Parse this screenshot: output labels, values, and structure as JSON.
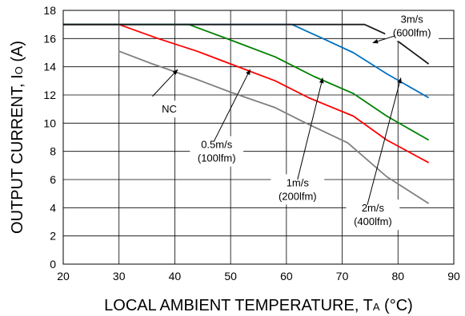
{
  "chart_data": {
    "type": "line",
    "title": "",
    "xlabel_parts": {
      "main": "LOCAL AMBIENT TEMPERATURE, T",
      "sub": "A",
      "unit": " (°C)"
    },
    "ylabel_parts": {
      "main": "OUTPUT CURRENT, I",
      "sub": "O",
      "unit": " (A)"
    },
    "xlim": [
      20,
      90
    ],
    "ylim": [
      0,
      18
    ],
    "xticks": [
      "20",
      "30",
      "40",
      "50",
      "60",
      "70",
      "80",
      "90"
    ],
    "yticks": [
      "0",
      "2",
      "4",
      "6",
      "8",
      "10",
      "12",
      "14",
      "16",
      "18"
    ],
    "grid": true,
    "series": [
      {
        "name": "",
        "color": "#7f7f7f",
        "points": [
          [
            30,
            15.1
          ],
          [
            36,
            14.2
          ],
          [
            44,
            13.1
          ],
          [
            50,
            12.2
          ],
          [
            58,
            11.1
          ],
          [
            63,
            10.1
          ],
          [
            71,
            8.6
          ],
          [
            78,
            6.2
          ],
          [
            85.5,
            4.3
          ]
        ]
      },
      {
        "name": "",
        "color": "#ff0000",
        "points": [
          [
            20,
            17.0
          ],
          [
            30,
            17.0
          ],
          [
            37,
            16.0
          ],
          [
            44,
            15.1
          ],
          [
            50,
            14.2
          ],
          [
            58,
            13.0
          ],
          [
            64,
            11.8
          ],
          [
            72,
            10.5
          ],
          [
            78,
            8.8
          ],
          [
            85.5,
            7.2
          ]
        ]
      },
      {
        "name": "",
        "color": "#008000",
        "points": [
          [
            20,
            17.0
          ],
          [
            42.5,
            17.0
          ],
          [
            50,
            15.9
          ],
          [
            58,
            14.7
          ],
          [
            65,
            13.3
          ],
          [
            72,
            12.1
          ],
          [
            78,
            10.5
          ],
          [
            85.5,
            8.8
          ]
        ]
      },
      {
        "name": "",
        "color": "#0070c0",
        "points": [
          [
            20,
            17.0
          ],
          [
            61,
            17.0
          ],
          [
            66,
            16.1
          ],
          [
            72,
            15.0
          ],
          [
            78,
            13.5
          ],
          [
            85.5,
            11.8
          ]
        ]
      },
      {
        "name": "",
        "color": "#1a1a1a",
        "points": [
          [
            20,
            17.0
          ],
          [
            74,
            17.0
          ],
          [
            79,
            16.1
          ],
          [
            85.5,
            14.2
          ]
        ]
      }
    ],
    "annotations": [
      {
        "lines": [
          "NC"
        ],
        "text_at": [
          39,
          11.0
        ],
        "arrow_from": [
          36,
          11.9
        ],
        "arrow_to": [
          40.5,
          13.8
        ]
      },
      {
        "lines": [
          "0.5m/s",
          "(100lfm)"
        ],
        "text_at": [
          47.5,
          8.0
        ],
        "arrow_from": [
          47,
          8.7
        ],
        "arrow_to": [
          53.5,
          13.8
        ]
      },
      {
        "lines": [
          "1m/s",
          "(200lfm)"
        ],
        "text_at": [
          62,
          5.3
        ],
        "arrow_from": [
          62,
          6.0
        ],
        "arrow_to": [
          66.5,
          13.2
        ]
      },
      {
        "lines": [
          "2m/s",
          "(400lfm)"
        ],
        "text_at": [
          75.5,
          3.5
        ],
        "arrow_from": [
          74.5,
          4.2
        ],
        "arrow_to": [
          80.5,
          13.2
        ]
      },
      {
        "lines": [
          "3m/s",
          "(600lfm)"
        ],
        "text_at": [
          82.5,
          16.9
        ],
        "arrow_from": [
          79.5,
          16.2
        ],
        "arrow_to": [
          75.5,
          15.7
        ]
      }
    ]
  }
}
